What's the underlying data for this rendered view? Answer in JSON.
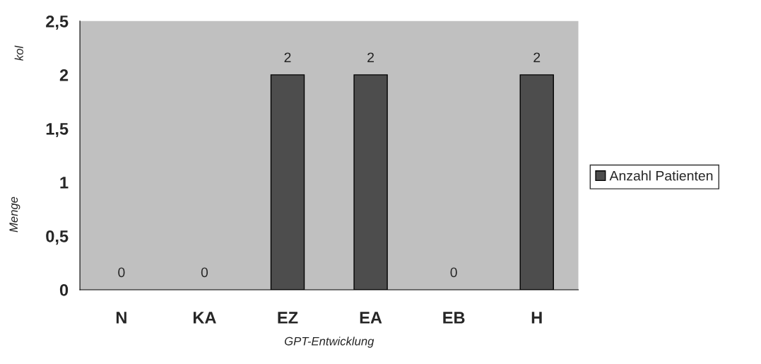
{
  "chart_data": {
    "type": "bar",
    "xlabel": "GPT-Entwicklung",
    "ylabel": "Menge",
    "annotations": [
      "kol"
    ],
    "categories": [
      "N",
      "KA",
      "EZ",
      "EA",
      "EB",
      "H"
    ],
    "series": [
      {
        "name": "Anzahl Patienten",
        "color": "#4d4d4d",
        "values": [
          0,
          0,
          2,
          2,
          0,
          2
        ]
      }
    ],
    "ylim": [
      0,
      2.5
    ],
    "yticks": [
      0,
      {
        "value": 0.5,
        "label": "0,5"
      },
      1,
      {
        "value": 1.5,
        "label": "1,5"
      },
      2,
      {
        "value": 2.5,
        "label": "2,5"
      }
    ],
    "data_labels": true,
    "legend": "right",
    "grid": false
  }
}
